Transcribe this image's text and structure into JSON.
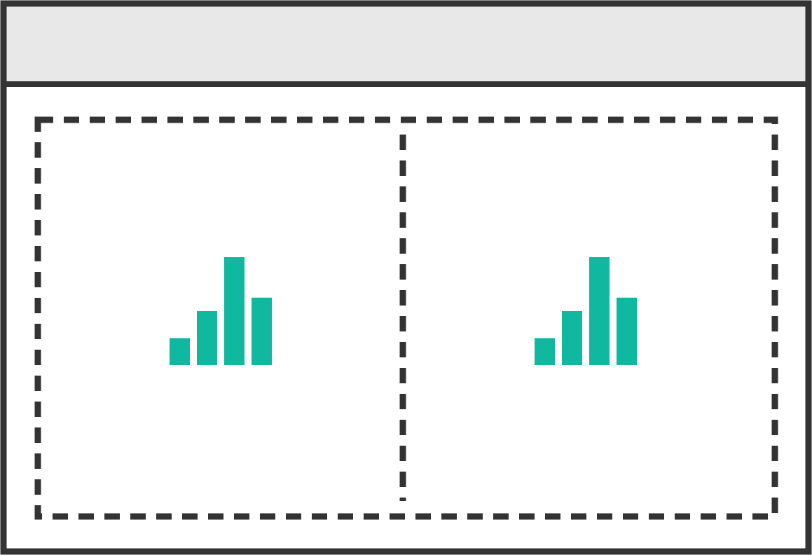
{
  "window": {
    "frame_color": "#333333",
    "header_color": "#e8e8e8",
    "body_color": "#ffffff"
  },
  "layout_diagram": {
    "outline_style": "dashed",
    "panels": [
      {
        "icon": "bar-chart-icon",
        "chart_data": {
          "type": "bar",
          "values": [
            1,
            2,
            4,
            2.5
          ],
          "color": "#10b8a0"
        }
      },
      {
        "icon": "bar-chart-icon",
        "chart_data": {
          "type": "bar",
          "values": [
            1,
            2,
            4,
            2.5
          ],
          "color": "#10b8a0"
        }
      }
    ]
  }
}
